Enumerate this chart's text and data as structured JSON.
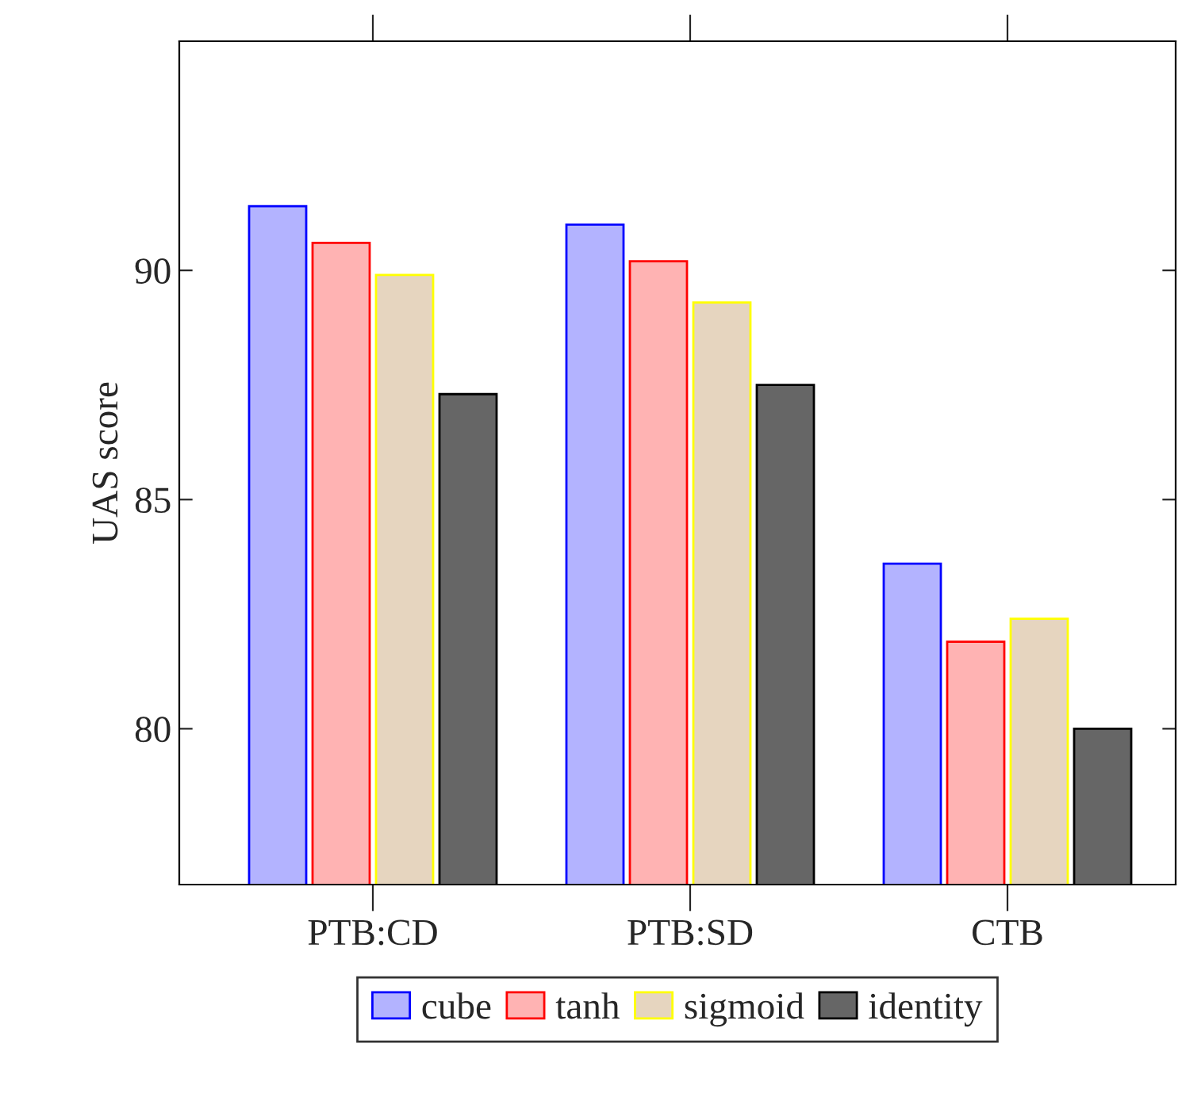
{
  "chart_data": {
    "type": "bar",
    "ylabel": "UAS score",
    "categories": [
      "PTB:CD",
      "PTB:SD",
      "CTB"
    ],
    "series": [
      {
        "name": "cube",
        "color": "#b3b3ff",
        "values": [
          91.4,
          91.0,
          83.6
        ]
      },
      {
        "name": "tanh",
        "color": "#ffb3b3",
        "values": [
          90.6,
          90.2,
          81.9
        ]
      },
      {
        "name": "sigmoid",
        "color": "#e6d5bf",
        "values": [
          89.9,
          89.3,
          82.4
        ]
      },
      {
        "name": "identity",
        "color": "#666666",
        "values": [
          87.3,
          87.5,
          80.0
        ]
      }
    ],
    "ylim": [
      76.6,
      95
    ],
    "yticks": [
      80,
      85,
      90
    ],
    "grid": false,
    "legend": "bottom"
  }
}
